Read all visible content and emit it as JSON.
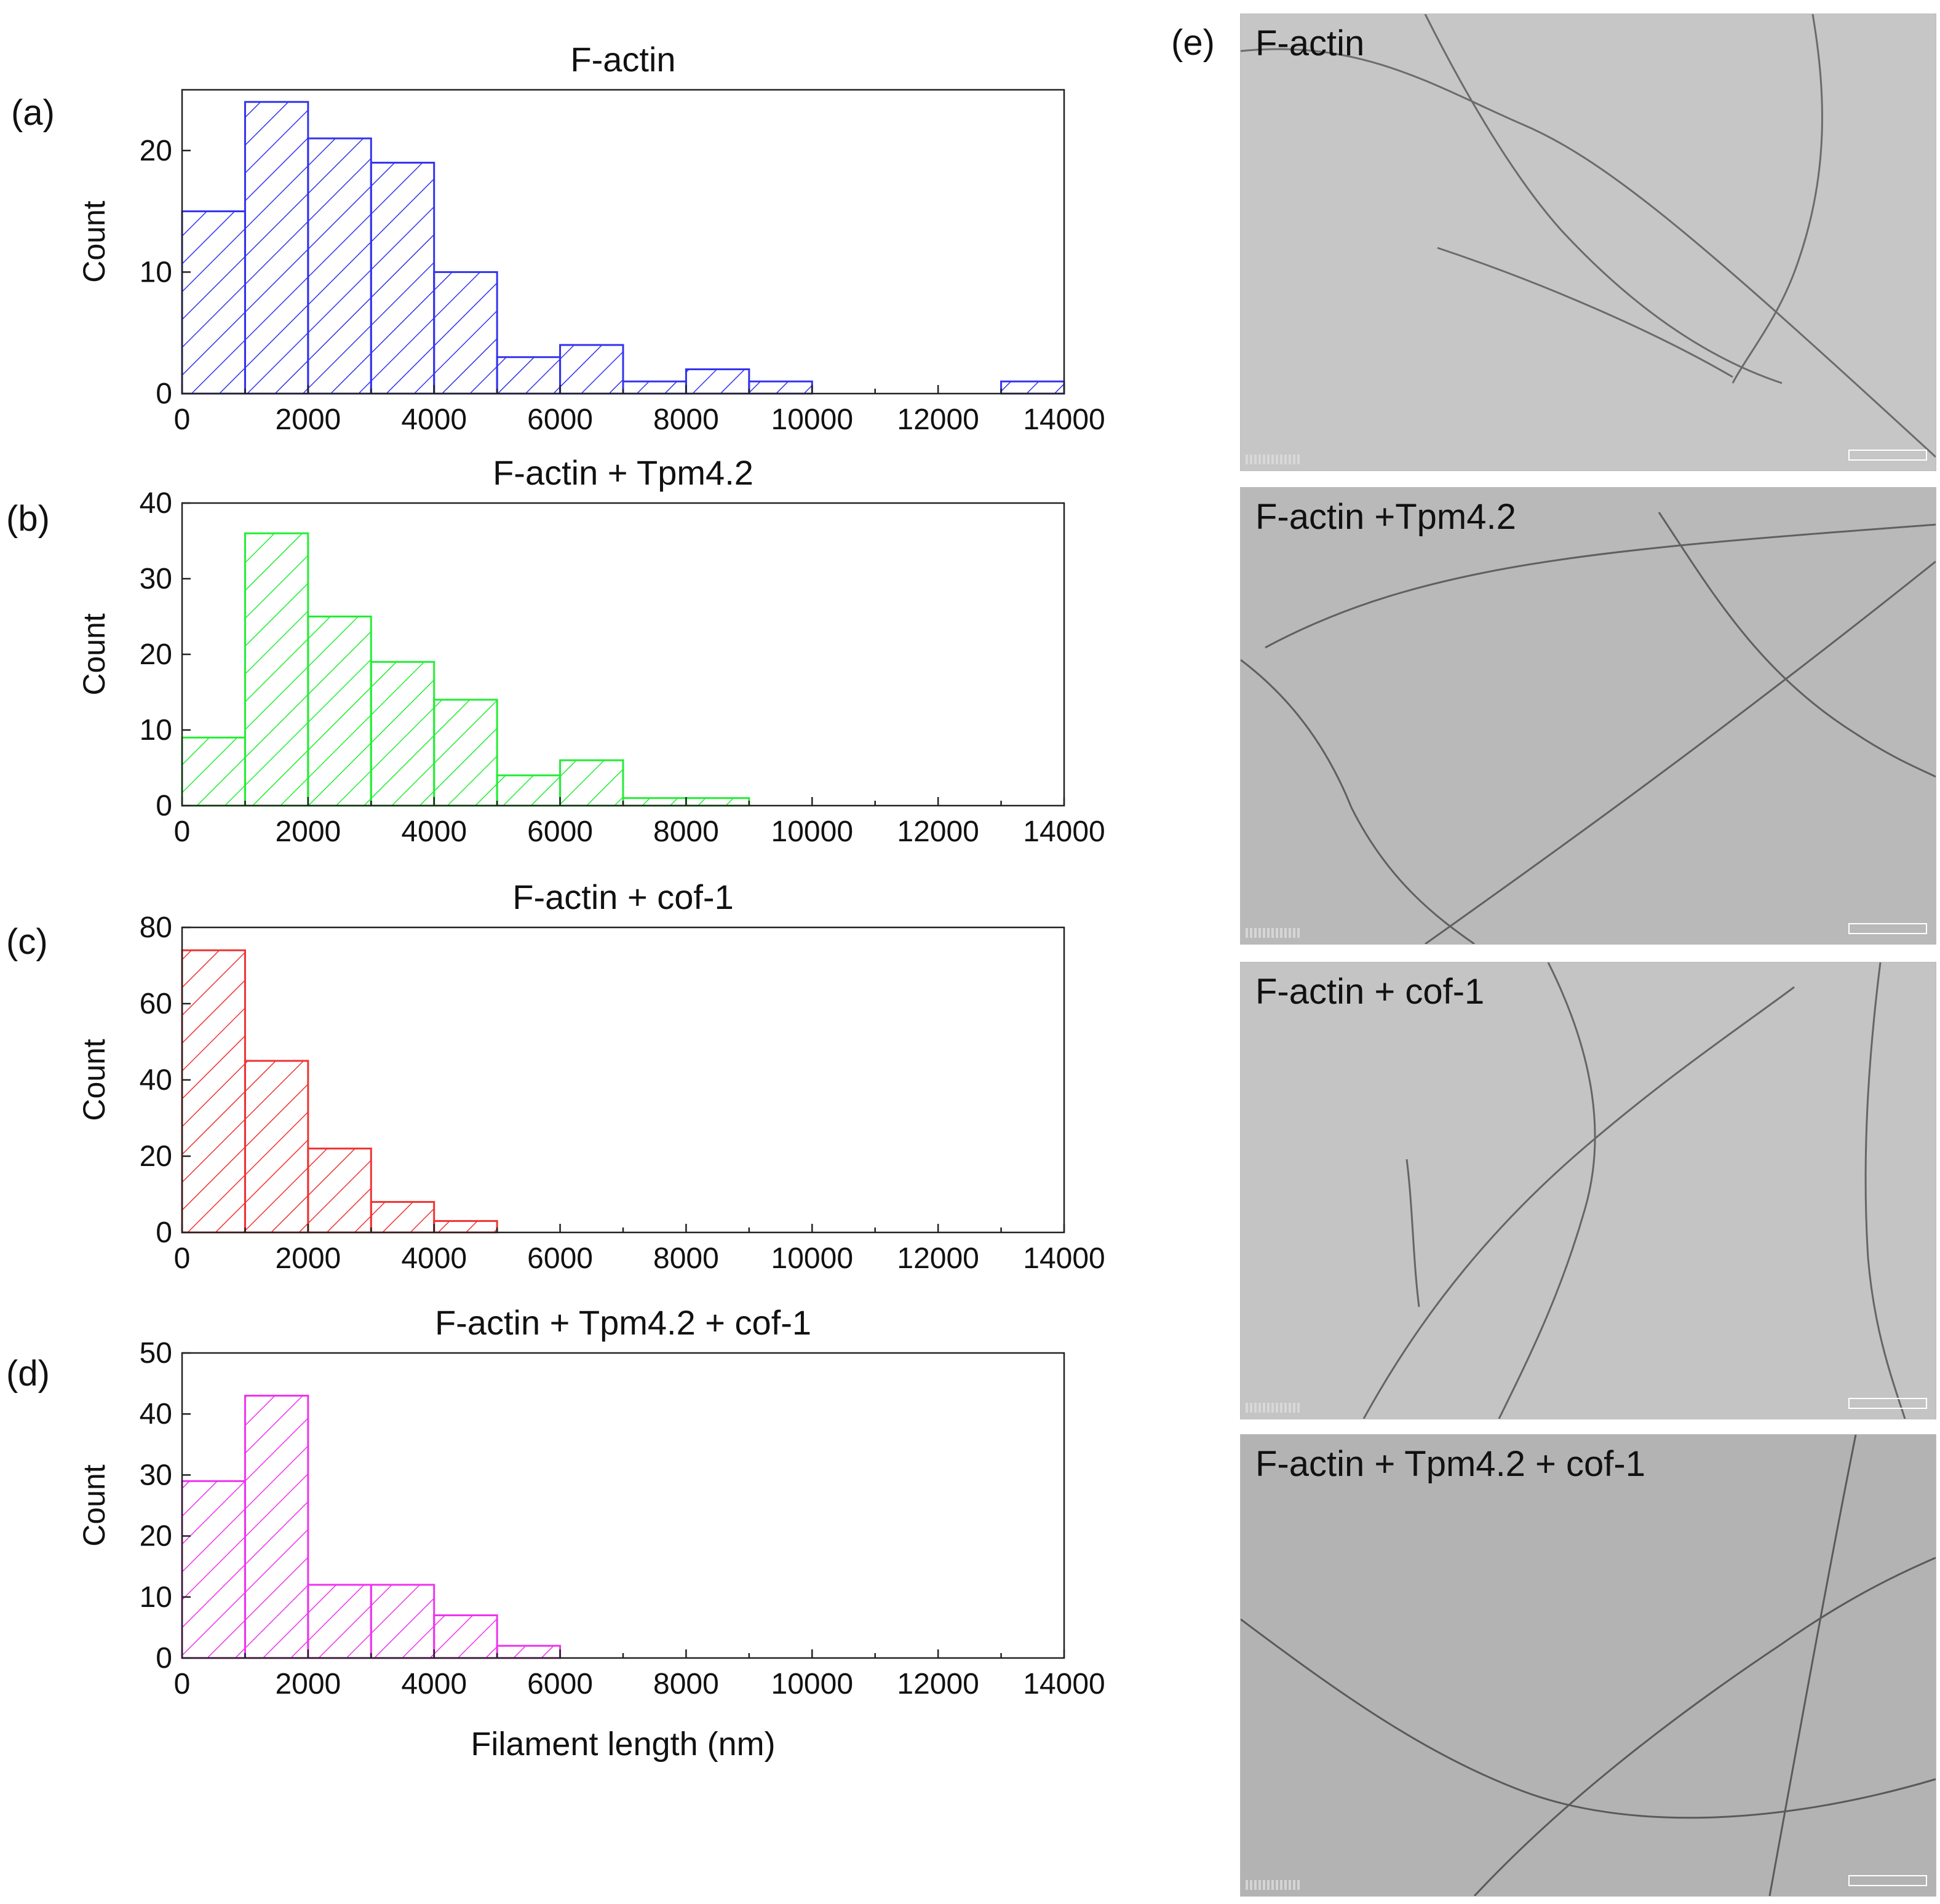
{
  "figure": {
    "panel_labels": [
      "(a)",
      "(b)",
      "(c)",
      "(d)",
      "(e)"
    ],
    "shared_xlabel": "Filament length (nm)"
  },
  "chart_data": [
    {
      "type": "bar",
      "title": "F-actin",
      "ylabel": "Count",
      "xlabel": "",
      "bin_edges": [
        0,
        1000,
        2000,
        3000,
        4000,
        5000,
        6000,
        7000,
        8000,
        9000,
        10000,
        11000,
        12000,
        13000,
        14000
      ],
      "values": [
        15,
        24,
        21,
        19,
        10,
        3,
        4,
        1,
        2,
        1,
        0,
        0,
        0,
        1
      ],
      "xlim": [
        0,
        14000
      ],
      "ylim": [
        0,
        25
      ],
      "xticks": [
        0,
        2000,
        4000,
        6000,
        8000,
        10000,
        12000,
        14000
      ],
      "yticks": [
        0,
        10,
        20
      ],
      "color": "#3333ee",
      "hatch": "diagonal"
    },
    {
      "type": "bar",
      "title": "F-actin + Tpm4.2",
      "ylabel": "Count",
      "xlabel": "",
      "bin_edges": [
        0,
        1000,
        2000,
        3000,
        4000,
        5000,
        6000,
        7000,
        8000,
        9000,
        10000,
        11000,
        12000,
        13000,
        14000
      ],
      "values": [
        9,
        36,
        25,
        19,
        14,
        4,
        6,
        1,
        1,
        0,
        0,
        0,
        0,
        0
      ],
      "xlim": [
        0,
        14000
      ],
      "ylim": [
        0,
        40
      ],
      "xticks": [
        0,
        2000,
        4000,
        6000,
        8000,
        10000,
        12000,
        14000
      ],
      "yticks": [
        0,
        10,
        20,
        30,
        40
      ],
      "color": "#22ee33",
      "hatch": "diagonal"
    },
    {
      "type": "bar",
      "title": "F-actin + cof-1",
      "ylabel": "Count",
      "xlabel": "",
      "bin_edges": [
        0,
        1000,
        2000,
        3000,
        4000,
        5000,
        6000,
        7000,
        8000,
        9000,
        10000,
        11000,
        12000,
        13000,
        14000
      ],
      "values": [
        74,
        45,
        22,
        8,
        3,
        0,
        0,
        0,
        0,
        0,
        0,
        0,
        0,
        0
      ],
      "xlim": [
        0,
        14000
      ],
      "ylim": [
        0,
        80
      ],
      "xticks": [
        0,
        2000,
        4000,
        6000,
        8000,
        10000,
        12000,
        14000
      ],
      "yticks": [
        0,
        20,
        40,
        60,
        80
      ],
      "color": "#ee3333",
      "hatch": "diagonal"
    },
    {
      "type": "bar",
      "title": "F-actin + Tpm4.2 + cof-1",
      "ylabel": "Count",
      "xlabel": "Filament length (nm)",
      "bin_edges": [
        0,
        1000,
        2000,
        3000,
        4000,
        5000,
        6000,
        7000,
        8000,
        9000,
        10000,
        11000,
        12000,
        13000,
        14000
      ],
      "values": [
        29,
        43,
        12,
        12,
        7,
        2,
        0,
        0,
        0,
        0,
        0,
        0,
        0,
        0
      ],
      "xlim": [
        0,
        14000
      ],
      "ylim": [
        0,
        50
      ],
      "xticks": [
        0,
        2000,
        4000,
        6000,
        8000,
        10000,
        12000,
        14000
      ],
      "yticks": [
        0,
        10,
        20,
        30,
        40,
        50
      ],
      "color": "#ee33ee",
      "hatch": "diagonal"
    }
  ],
  "micrographs": [
    {
      "label": "F-actin",
      "tone": "#c2c2c2"
    },
    {
      "label": "F-actin +Tpm4.2",
      "tone": "#b4b4b4"
    },
    {
      "label": "F-actin + cof-1",
      "tone": "#c0c0c0"
    },
    {
      "label": "F-actin + Tpm4.2 + cof-1",
      "tone": "#b0b0b0"
    }
  ]
}
